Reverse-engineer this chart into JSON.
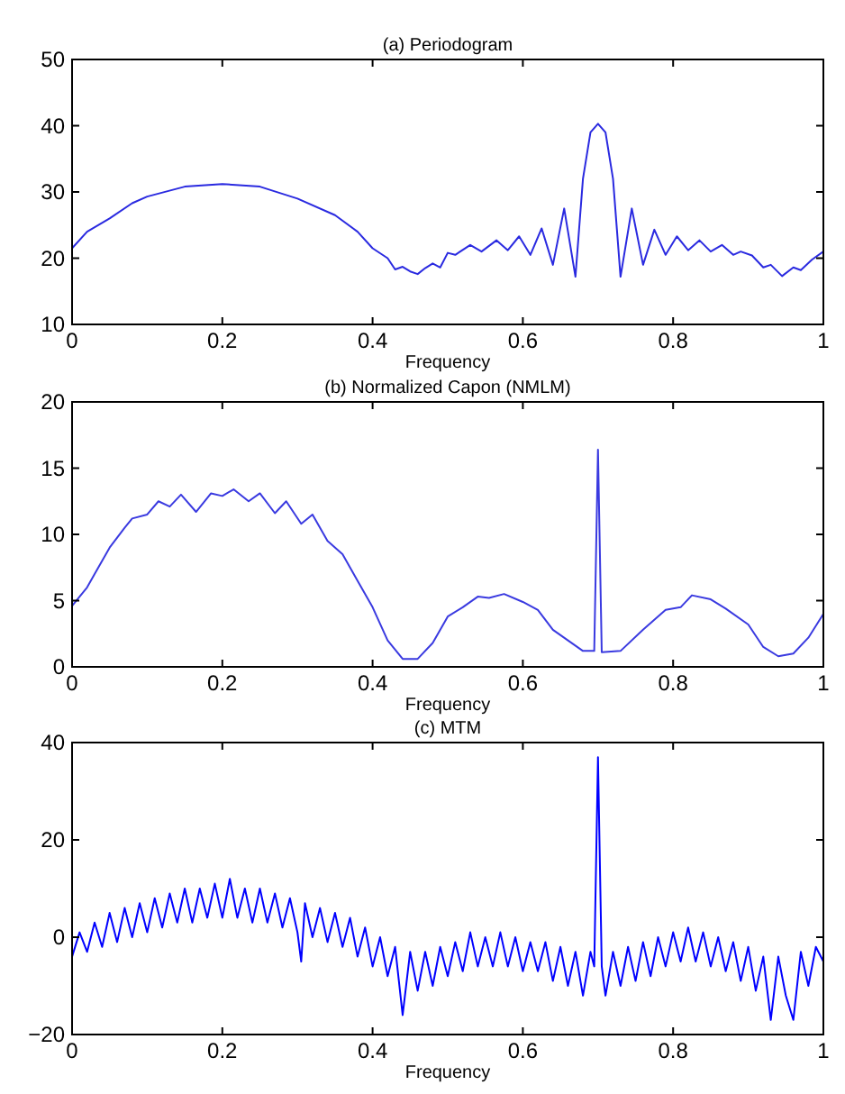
{
  "chart_data": [
    {
      "type": "line",
      "title": "(a) Periodogram",
      "xlabel": "Frequency",
      "xlim": [
        0,
        1
      ],
      "xticks": [
        0,
        0.2,
        0.4,
        0.6,
        0.8,
        1
      ],
      "ylim": [
        10,
        50
      ],
      "yticks": [
        10,
        20,
        30,
        40,
        50
      ],
      "grid": false,
      "series": [
        {
          "color": "#2a2ae0",
          "x": [
            0,
            0.02,
            0.05,
            0.08,
            0.1,
            0.15,
            0.2,
            0.25,
            0.3,
            0.35,
            0.38,
            0.4,
            0.42,
            0.43,
            0.44,
            0.45,
            0.46,
            0.47,
            0.48,
            0.49,
            0.5,
            0.51,
            0.53,
            0.545,
            0.565,
            0.58,
            0.595,
            0.61,
            0.625,
            0.64,
            0.655,
            0.67,
            0.68,
            0.69,
            0.7,
            0.71,
            0.72,
            0.73,
            0.745,
            0.76,
            0.775,
            0.79,
            0.805,
            0.82,
            0.835,
            0.85,
            0.865,
            0.88,
            0.89,
            0.905,
            0.92,
            0.93,
            0.945,
            0.96,
            0.97,
            0.985,
            1
          ],
          "values": [
            21.5,
            24,
            26,
            28.3,
            29.3,
            30.8,
            31.2,
            30.8,
            29,
            26.5,
            24,
            21.5,
            20,
            18.3,
            18.7,
            18,
            17.6,
            18.5,
            19.2,
            18.6,
            20.8,
            20.5,
            22,
            21,
            22.7,
            21.2,
            23.3,
            20.5,
            24.5,
            19,
            27.5,
            17.2,
            32,
            39,
            40.3,
            39,
            32,
            17.2,
            27.5,
            19,
            24.3,
            20.5,
            23.3,
            21.2,
            22.7,
            21,
            22,
            20.5,
            21,
            20.4,
            18.6,
            19,
            17.3,
            18.6,
            18.2,
            19.8,
            21
          ]
        }
      ]
    },
    {
      "type": "line",
      "title": "(b) Normalized Capon (NMLM)",
      "xlabel": "Frequency",
      "xlim": [
        0,
        1
      ],
      "xticks": [
        0,
        0.2,
        0.4,
        0.6,
        0.8,
        1
      ],
      "ylim": [
        0,
        20
      ],
      "yticks": [
        0,
        5,
        10,
        15,
        20
      ],
      "grid": false,
      "series": [
        {
          "color": "#3a3ae0",
          "x": [
            0,
            0.02,
            0.03,
            0.05,
            0.07,
            0.08,
            0.1,
            0.115,
            0.13,
            0.145,
            0.165,
            0.185,
            0.2,
            0.215,
            0.235,
            0.25,
            0.27,
            0.285,
            0.305,
            0.32,
            0.34,
            0.36,
            0.38,
            0.4,
            0.42,
            0.44,
            0.46,
            0.48,
            0.5,
            0.52,
            0.54,
            0.555,
            0.575,
            0.6,
            0.62,
            0.64,
            0.66,
            0.68,
            0.695,
            0.7,
            0.705,
            0.73,
            0.76,
            0.79,
            0.81,
            0.825,
            0.85,
            0.87,
            0.9,
            0.92,
            0.94,
            0.96,
            0.98,
            1
          ],
          "values": [
            4.6,
            6,
            7,
            9,
            10.5,
            11.2,
            11.5,
            12.5,
            12.1,
            13,
            11.7,
            13.1,
            12.9,
            13.4,
            12.5,
            13.1,
            11.6,
            12.5,
            10.8,
            11.5,
            9.5,
            8.5,
            6.5,
            4.5,
            2,
            0.6,
            0.6,
            1.8,
            3.8,
            4.5,
            5.3,
            5.2,
            5.5,
            4.9,
            4.3,
            2.8,
            2,
            1.2,
            1.2,
            16.4,
            1.1,
            1.2,
            2.8,
            4.3,
            4.5,
            5.4,
            5.1,
            4.4,
            3.2,
            1.5,
            0.8,
            1,
            2.2,
            4
          ]
        }
      ]
    },
    {
      "type": "line",
      "title": "(c) MTM",
      "xlabel": "Frequency",
      "xlim": [
        0,
        1
      ],
      "xticks": [
        0,
        0.2,
        0.4,
        0.6,
        0.8,
        1
      ],
      "ylim": [
        -20,
        40
      ],
      "yticks": [
        {
          "value": -20,
          "label": "−20"
        },
        0,
        20,
        40
      ],
      "grid": false,
      "series": [
        {
          "color": "#0000ff",
          "x": [
            0,
            0.01,
            0.02,
            0.03,
            0.04,
            0.05,
            0.06,
            0.07,
            0.08,
            0.09,
            0.1,
            0.11,
            0.12,
            0.13,
            0.14,
            0.15,
            0.16,
            0.17,
            0.18,
            0.19,
            0.2,
            0.21,
            0.22,
            0.23,
            0.24,
            0.25,
            0.26,
            0.27,
            0.28,
            0.29,
            0.3,
            0.305,
            0.31,
            0.32,
            0.33,
            0.34,
            0.35,
            0.36,
            0.37,
            0.38,
            0.39,
            0.4,
            0.41,
            0.42,
            0.43,
            0.44,
            0.45,
            0.46,
            0.47,
            0.48,
            0.49,
            0.5,
            0.51,
            0.52,
            0.53,
            0.54,
            0.55,
            0.56,
            0.57,
            0.58,
            0.59,
            0.6,
            0.61,
            0.62,
            0.63,
            0.64,
            0.65,
            0.66,
            0.67,
            0.68,
            0.69,
            0.695,
            0.7,
            0.705,
            0.71,
            0.72,
            0.73,
            0.74,
            0.75,
            0.76,
            0.77,
            0.78,
            0.79,
            0.8,
            0.81,
            0.82,
            0.83,
            0.84,
            0.85,
            0.86,
            0.87,
            0.88,
            0.89,
            0.9,
            0.91,
            0.92,
            0.93,
            0.94,
            0.95,
            0.96,
            0.97,
            0.98,
            0.99,
            1
          ],
          "values": [
            -4,
            1,
            -3,
            3,
            -2,
            5,
            -1,
            6,
            0,
            7,
            1,
            8,
            2,
            9,
            3,
            10,
            3,
            10,
            4,
            11,
            4,
            12,
            4,
            10,
            3,
            10,
            3,
            9,
            2,
            8,
            1,
            -5,
            7,
            0,
            6,
            -1,
            5,
            -2,
            4,
            -4,
            2,
            -6,
            0,
            -8,
            -2,
            -16,
            -3,
            -11,
            -3,
            -10,
            -2,
            -8,
            -1,
            -7,
            1,
            -6,
            0,
            -6,
            1,
            -6,
            0,
            -7,
            -1,
            -7,
            -1,
            -9,
            -2,
            -10,
            -3,
            -12,
            -3,
            -6,
            37,
            -6,
            -12,
            -3,
            -10,
            -2,
            -9,
            -1,
            -8,
            0,
            -6,
            1,
            -5,
            2,
            -5,
            1,
            -6,
            0,
            -7,
            -1,
            -9,
            -2,
            -11,
            -4,
            -17,
            -4,
            -12,
            -17,
            -3,
            -10,
            -2,
            -5
          ]
        }
      ]
    }
  ]
}
